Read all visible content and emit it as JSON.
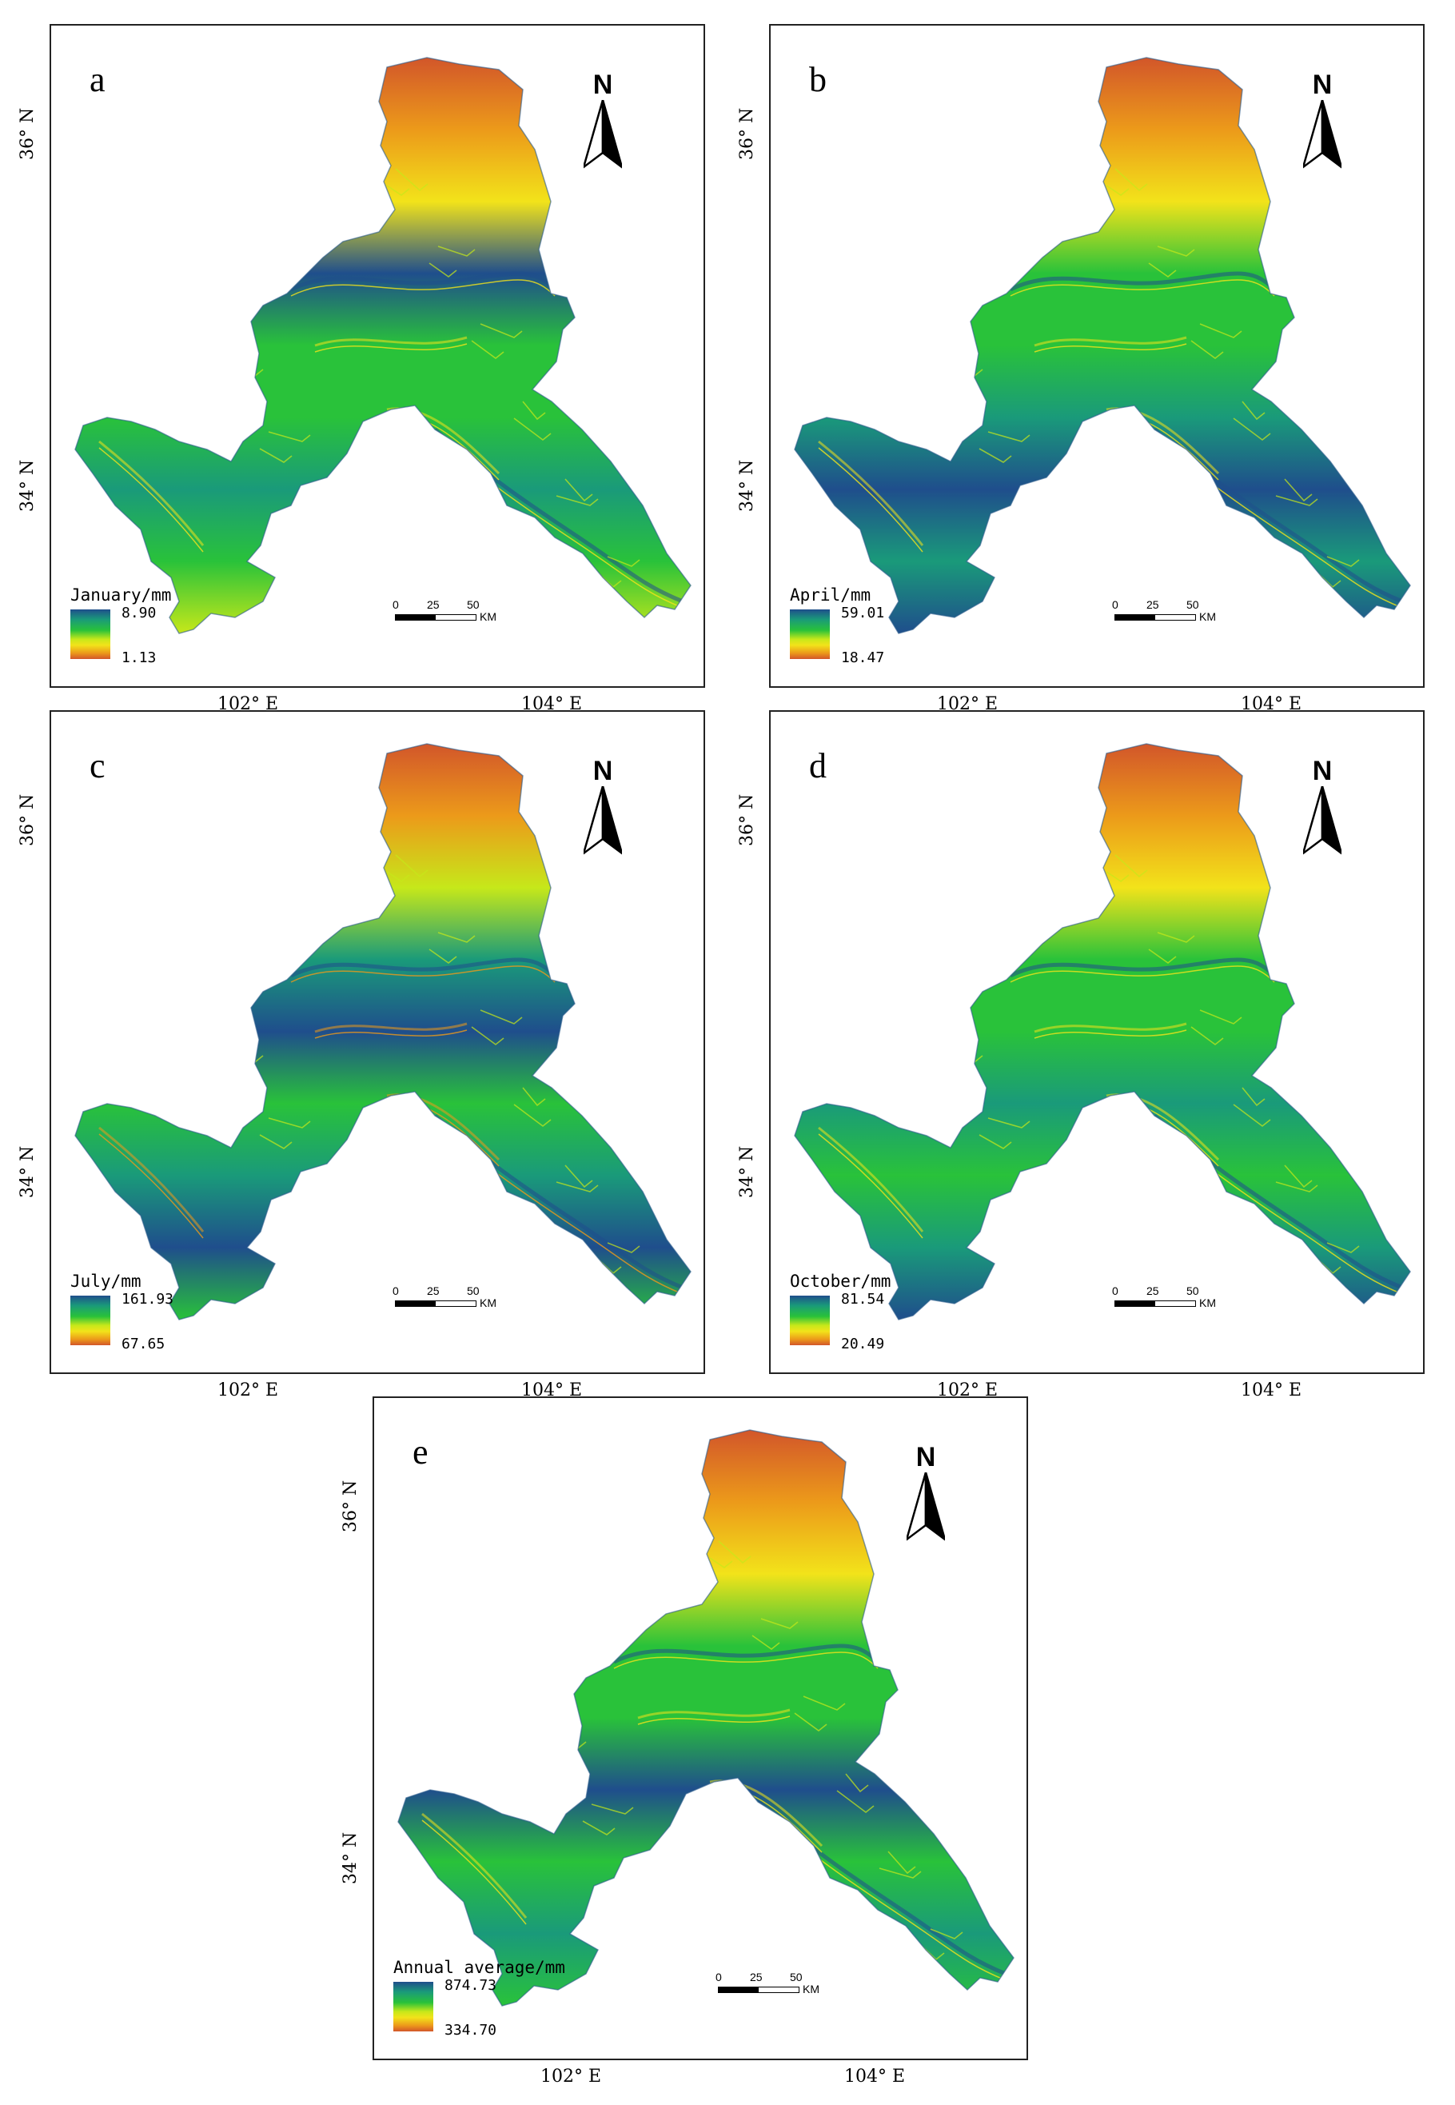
{
  "colors": {
    "high": "#1f4e8c",
    "mid_high": "#1a9a7a",
    "mid": "#29c23a",
    "mid_low": "#c6e81a",
    "low_mid": "#f2e31a",
    "low": "#ec9a1a",
    "lowest": "#d2562a"
  },
  "north_label": "N",
  "scale": {
    "t0": "0",
    "t1": "25",
    "t2": "50",
    "unit": "KM"
  },
  "lat_labels": [
    "36° N",
    "34° N"
  ],
  "lon_labels": [
    "102° E",
    "104° E"
  ],
  "panels": [
    {
      "letter": "a",
      "legend_title": "January/mm",
      "max": "8.90",
      "min": "1.13"
    },
    {
      "letter": "b",
      "legend_title": "April/mm",
      "max": "59.01",
      "min": "18.47"
    },
    {
      "letter": "c",
      "legend_title": "July/mm",
      "max": "161.93",
      "min": "67.65"
    },
    {
      "letter": "d",
      "legend_title": "October/mm",
      "max": "81.54",
      "min": "20.49"
    },
    {
      "letter": "e",
      "legend_title": "Annual average/mm",
      "max": "874.73",
      "min": "334.70"
    }
  ]
}
